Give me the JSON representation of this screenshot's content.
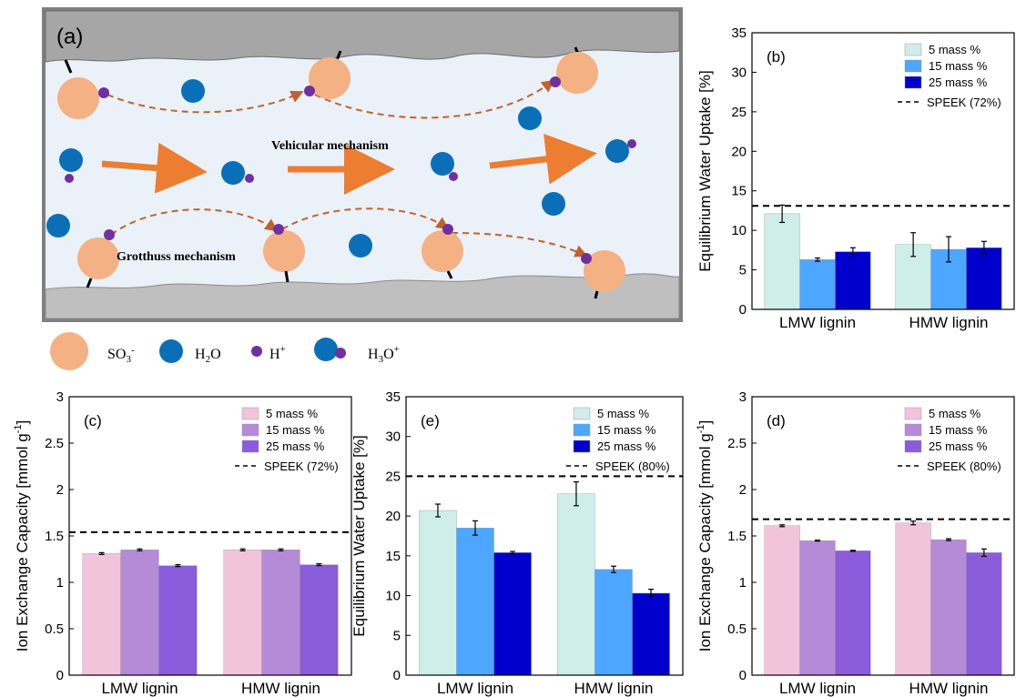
{
  "panel_a": {
    "label": "(a)",
    "vehicular": "Vehicular mechanism",
    "grotthuss": "Grotthuss mechanism",
    "legend": {
      "so3": "SO3-",
      "h2o": "H2O",
      "h": "H+",
      "h3o": "H3O+"
    },
    "colors": {
      "so3": "#f4b183",
      "h2o": "#0b6fb8",
      "h": "#7030a0",
      "arrow": "#ed7d31",
      "wall": "#a6a6a6",
      "channel": "#e8f0f8"
    }
  },
  "chart_data": [
    {
      "panel": "(b)",
      "type": "bar",
      "ylabel": "Equilibrium Water Uptake [%]",
      "categories": [
        "LMW lignin",
        "HMW lignin"
      ],
      "ylim": [
        0,
        35
      ],
      "yticks": [
        "0",
        "5",
        "10",
        "15",
        "20",
        "25",
        "30",
        "35"
      ],
      "series": [
        {
          "name": "5 mass %",
          "color": "#cfeee9",
          "values": [
            12.1,
            8.2
          ],
          "errors": [
            1.1,
            1.5
          ]
        },
        {
          "name": "15 mass %",
          "color": "#4da6ff",
          "values": [
            6.3,
            7.6
          ],
          "errors": [
            0.2,
            1.6
          ]
        },
        {
          "name": "25 mass %",
          "color": "#0000cc",
          "values": [
            7.3,
            7.8
          ],
          "errors": [
            0.5,
            0.8
          ]
        }
      ],
      "reference": {
        "name": "SPEEK (72%)",
        "value": 13.1
      },
      "legend": "top-right"
    },
    {
      "panel": "(c)",
      "type": "bar",
      "ylabel": "Ion Exchange Capacity [mmol g-1]",
      "categories": [
        "LMW lignin",
        "HMW lignin"
      ],
      "ylim": [
        0,
        3
      ],
      "yticks": [
        "0",
        "0.5",
        "1",
        "1.5",
        "2",
        "2.5",
        "3"
      ],
      "series": [
        {
          "name": "5 mass %",
          "color": "#f2c4dc",
          "values": [
            1.31,
            1.35
          ],
          "errors": [
            0.01,
            0.01
          ]
        },
        {
          "name": "15 mass %",
          "color": "#b58ad6",
          "values": [
            1.35,
            1.35
          ],
          "errors": [
            0.01,
            0.01
          ]
        },
        {
          "name": "25 mass %",
          "color": "#8a5cdb",
          "values": [
            1.18,
            1.19
          ],
          "errors": [
            0.01,
            0.01
          ]
        }
      ],
      "reference": {
        "name": "SPEEK (72%)",
        "value": 1.54
      },
      "legend": "top-right"
    },
    {
      "panel": "(e)",
      "type": "bar",
      "ylabel": "Equilibrium Water Uptake [%]",
      "categories": [
        "LMW lignin",
        "HMW lignin"
      ],
      "ylim": [
        0,
        35
      ],
      "yticks": [
        "0",
        "5",
        "10",
        "15",
        "20",
        "25",
        "30",
        "35"
      ],
      "series": [
        {
          "name": "5 mass %",
          "color": "#cfeee9",
          "values": [
            20.7,
            22.8
          ],
          "errors": [
            0.8,
            1.5
          ]
        },
        {
          "name": "15 mass %",
          "color": "#4da6ff",
          "values": [
            18.5,
            13.3
          ],
          "errors": [
            0.9,
            0.4
          ]
        },
        {
          "name": "25 mass %",
          "color": "#0000cc",
          "values": [
            15.4,
            10.3
          ],
          "errors": [
            0.15,
            0.5
          ]
        }
      ],
      "reference": {
        "name": "SPEEK (80%)",
        "value": 25.0
      },
      "legend": "top-right"
    },
    {
      "panel": "(d)",
      "type": "bar",
      "ylabel": "Ion Exchange Capacity [mmol g-1]",
      "categories": [
        "LMW lignin",
        "HMW lignin"
      ],
      "ylim": [
        0,
        3
      ],
      "yticks": [
        "0",
        "0.5",
        "1",
        "1.5",
        "2",
        "2.5",
        "3"
      ],
      "series": [
        {
          "name": "5 mass %",
          "color": "#f2c4dc",
          "values": [
            1.61,
            1.64
          ],
          "errors": [
            0.01,
            0.02
          ]
        },
        {
          "name": "15 mass %",
          "color": "#b58ad6",
          "values": [
            1.45,
            1.46
          ],
          "errors": [
            0.005,
            0.01
          ]
        },
        {
          "name": "25 mass %",
          "color": "#8a5cdb",
          "values": [
            1.34,
            1.32
          ],
          "errors": [
            0.005,
            0.04
          ]
        }
      ],
      "reference": {
        "name": "SPEEK (80%)",
        "value": 1.68
      },
      "legend": "top-right"
    }
  ]
}
